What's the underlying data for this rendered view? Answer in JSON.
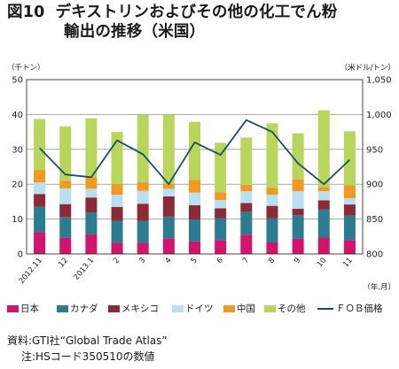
{
  "title": {
    "number": "図10",
    "line1": "デキストリンおよびその他の化工でん粉",
    "line2": "輸出の推移（米国）"
  },
  "source": {
    "line1": "資料:GTI社“Global Trade Atlas”",
    "line2": "注:HSコード350510の数値"
  },
  "chart_data": {
    "type": "bar",
    "stacked": true,
    "categories": [
      "2012.11",
      "12",
      "2013.1",
      "2",
      "3",
      "4",
      "5",
      "6",
      "7",
      "8",
      "9",
      "10",
      "11"
    ],
    "left_axis": {
      "unit": "（千トン）",
      "ylim": [
        0,
        50
      ],
      "ticks": [
        "0",
        "10",
        "20",
        "30",
        "40",
        "50"
      ]
    },
    "right_axis": {
      "unit": "（米ドル/トン）",
      "ylim": [
        800,
        1050
      ],
      "ticks": [
        "800",
        "850",
        "900",
        "950",
        "1,000",
        "1,050"
      ]
    },
    "xlabel_unit": "（年.月）",
    "grid": true,
    "legend_position": "bottom",
    "series": [
      {
        "name": "日本",
        "color": "#d4136a",
        "values": [
          6.2,
          4.6,
          5.6,
          3.2,
          3.2,
          4.5,
          3.6,
          4.0,
          5.5,
          3.3,
          4.4,
          4.7,
          4.0
        ]
      },
      {
        "name": "カナダ",
        "color": "#2b7b91",
        "values": [
          7.3,
          6.0,
          6.3,
          6.3,
          6.3,
          6.2,
          6.3,
          6.2,
          6.6,
          6.9,
          6.7,
          8.1,
          7.0
        ]
      },
      {
        "name": "メキシコ",
        "color": "#8e2a36",
        "values": [
          3.7,
          3.7,
          4.3,
          4.0,
          4.9,
          5.8,
          4.1,
          2.9,
          2.5,
          3.6,
          1.9,
          2.6,
          3.2
        ]
      },
      {
        "name": "ドイツ",
        "color": "#b9dff0",
        "values": [
          3.3,
          4.5,
          2.5,
          3.5,
          3.7,
          2.2,
          3.6,
          2.4,
          3.4,
          3.2,
          5.0,
          2.6,
          1.8
        ]
      },
      {
        "name": "中国",
        "color": "#f29a1f",
        "values": [
          3.6,
          2.2,
          3.3,
          3.0,
          2.5,
          1.3,
          3.6,
          2.2,
          1.8,
          1.9,
          3.4,
          1.2,
          3.7
        ]
      },
      {
        "name": "その他",
        "color": "#b7d65a",
        "values": [
          14.6,
          15.6,
          16.9,
          15.0,
          19.4,
          20.0,
          16.7,
          14.2,
          13.6,
          18.6,
          13.2,
          22.0,
          15.5
        ]
      }
    ],
    "line_series": {
      "name": "ＦＯＢ価格",
      "color": "#1d4e6a",
      "axis": "right",
      "values": [
        952,
        914,
        910,
        963,
        943,
        900,
        960,
        942,
        992,
        975,
        930,
        900,
        935
      ]
    }
  }
}
